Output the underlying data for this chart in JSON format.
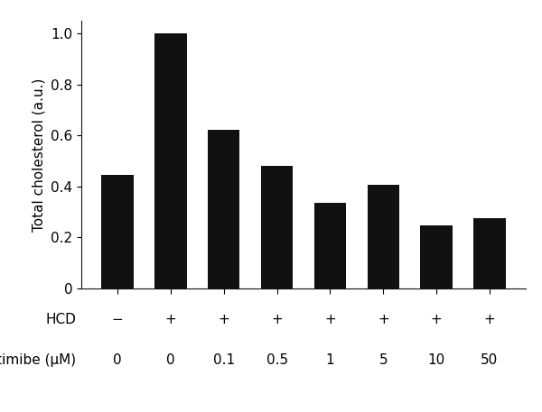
{
  "values": [
    0.445,
    1.0,
    0.62,
    0.48,
    0.335,
    0.405,
    0.248,
    0.275
  ],
  "bar_color": "#111111",
  "bar_width": 0.6,
  "ylim": [
    0,
    1.05
  ],
  "yticks": [
    0,
    0.2,
    0.4,
    0.6,
    0.8,
    1.0
  ],
  "ylabel": "Total cholesterol (a.u.)",
  "hcd_labels": [
    "−",
    "+",
    "+",
    "+",
    "+",
    "+",
    "+",
    "+"
  ],
  "ezetimibe_labels": [
    "0",
    "0",
    "0.1",
    "0.5",
    "1",
    "5",
    "10",
    "50"
  ],
  "hcd_row_label": "HCD",
  "ezetimibe_row_label": "Ezetimibe (μM)",
  "background_color": "#ffffff",
  "spine_color": "#111111",
  "label_fontsize": 11,
  "tick_fontsize": 11,
  "row_label_fontsize": 11,
  "anno_fontsize": 11
}
